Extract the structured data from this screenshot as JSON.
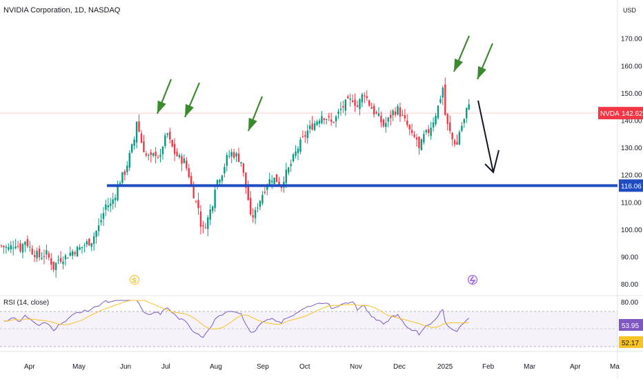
{
  "header": {
    "title": "NVIDIA Corporation, 1D, NASDAQ",
    "currency": "USD"
  },
  "rsi_panel": {
    "title": "RSI (14, close)",
    "rsi_value": "53.95",
    "ma_value": "52.17",
    "level_label": "80.00"
  },
  "badges": {
    "ticker": "NVDA",
    "last_price": "142.62",
    "support_price": "116.06"
  },
  "colors": {
    "up": "#089981",
    "down": "#f23645",
    "support_line": "#1e4bc2",
    "arrow_green": "#3c8a2e",
    "rsi_line": "#7e57c2",
    "rsi_ma": "#f7c325"
  },
  "chart_data": {
    "type": "candlestick",
    "symbol": "NVDA",
    "title": "NVIDIA Corporation, 1D, NASDAQ",
    "currency": "USD",
    "yticks": [
      80,
      90,
      100,
      110,
      120,
      130,
      140,
      150,
      160,
      170
    ],
    "ylim": [
      76,
      178
    ],
    "xticks": [
      "Apr",
      "May",
      "Jun",
      "Jul",
      "Aug",
      "Sep",
      "Oct",
      "Nov",
      "Dec",
      "2025",
      "Feb",
      "Mar",
      "Apr",
      "Ma"
    ],
    "support_level": 116.06,
    "last_price": 142.62,
    "path_points": [
      [
        0,
        94
      ],
      [
        3,
        93
      ],
      [
        6,
        95
      ],
      [
        8,
        93
      ],
      [
        10,
        96
      ],
      [
        13,
        92
      ],
      [
        16,
        90
      ],
      [
        19,
        91
      ],
      [
        21,
        88
      ],
      [
        22,
        86
      ],
      [
        24,
        89
      ],
      [
        27,
        90
      ],
      [
        30,
        92
      ],
      [
        33,
        93
      ],
      [
        36,
        95
      ],
      [
        38,
        96
      ],
      [
        41,
        101
      ],
      [
        43,
        106
      ],
      [
        44,
        109
      ],
      [
        46,
        109
      ],
      [
        48,
        113
      ],
      [
        50,
        118
      ],
      [
        52,
        121
      ],
      [
        54,
        127
      ],
      [
        56,
        133
      ],
      [
        57,
        140
      ],
      [
        59,
        132
      ],
      [
        61,
        127
      ],
      [
        63,
        126
      ],
      [
        65,
        128
      ],
      [
        67,
        126
      ],
      [
        68,
        131
      ],
      [
        70,
        135
      ],
      [
        71,
        132
      ],
      [
        73,
        128
      ],
      [
        75,
        126
      ],
      [
        77,
        125
      ],
      [
        79,
        120
      ],
      [
        80,
        116
      ],
      [
        82,
        110
      ],
      [
        83,
        108
      ],
      [
        84,
        102
      ],
      [
        85,
        100
      ],
      [
        87,
        104
      ],
      [
        89,
        110
      ],
      [
        90,
        116
      ],
      [
        91,
        118
      ],
      [
        93,
        121
      ],
      [
        95,
        126
      ],
      [
        97,
        128
      ],
      [
        99,
        127
      ],
      [
        101,
        125
      ],
      [
        102,
        120
      ],
      [
        104,
        111
      ],
      [
        105,
        104
      ],
      [
        107,
        106
      ],
      [
        108,
        109
      ],
      [
        110,
        113
      ],
      [
        112,
        117
      ],
      [
        114,
        119
      ],
      [
        116,
        118
      ],
      [
        118,
        116
      ],
      [
        119,
        119
      ],
      [
        121,
        122
      ],
      [
        123,
        126
      ],
      [
        125,
        130
      ],
      [
        127,
        133
      ],
      [
        129,
        136
      ],
      [
        131,
        138
      ],
      [
        133,
        140
      ],
      [
        135,
        142
      ],
      [
        137,
        141
      ],
      [
        139,
        139
      ],
      [
        141,
        141
      ],
      [
        143,
        144
      ],
      [
        145,
        146
      ],
      [
        147,
        147
      ],
      [
        148,
        148
      ],
      [
        150,
        145
      ],
      [
        152,
        149
      ],
      [
        153,
        150
      ],
      [
        155,
        146
      ],
      [
        157,
        143
      ],
      [
        159,
        141
      ],
      [
        161,
        138
      ],
      [
        163,
        140
      ],
      [
        165,
        143
      ],
      [
        167,
        144
      ],
      [
        169,
        141
      ],
      [
        171,
        138
      ],
      [
        173,
        134
      ],
      [
        175,
        133
      ],
      [
        176,
        129
      ],
      [
        178,
        134
      ],
      [
        180,
        136
      ],
      [
        182,
        140
      ],
      [
        184,
        145
      ],
      [
        186,
        152
      ],
      [
        187,
        142
      ],
      [
        188,
        138
      ],
      [
        190,
        133
      ],
      [
        192,
        131
      ],
      [
        193,
        136
      ],
      [
        195,
        140
      ],
      [
        197,
        147
      ]
    ],
    "rsi_value": 53.95,
    "rsi_ma_value": 52.17,
    "rsi_level": 80.0
  }
}
